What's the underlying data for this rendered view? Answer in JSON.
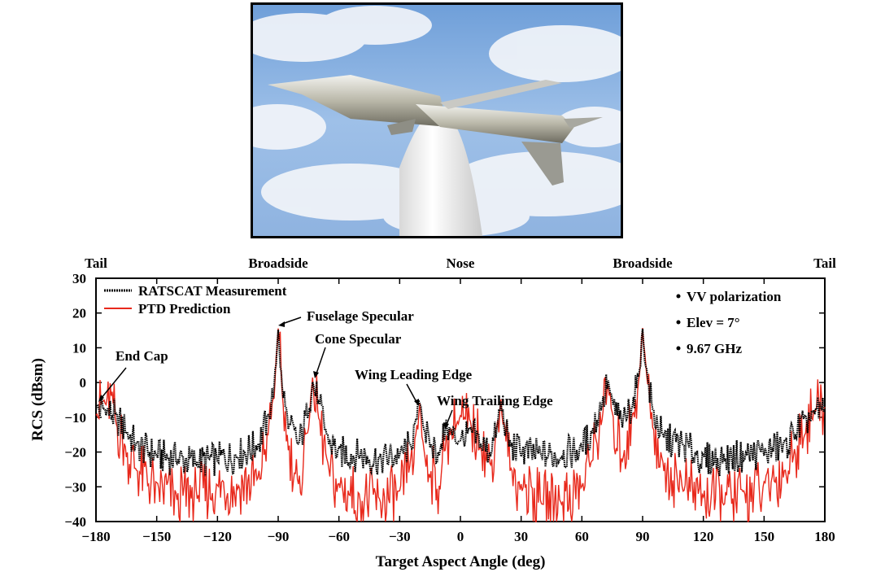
{
  "image": {
    "description_icon": "missile-model-on-pylon-photo"
  },
  "chart_data": {
    "type": "line",
    "xlabel": "Target Aspect Angle (deg)",
    "ylabel": "RCS (dBsm)",
    "xlim": [
      -180,
      180
    ],
    "ylim": [
      -40,
      30
    ],
    "xticks": [
      -180,
      -150,
      -120,
      -90,
      -60,
      -30,
      0,
      30,
      60,
      90,
      120,
      150,
      180
    ],
    "yticks": [
      -40,
      -30,
      -20,
      -10,
      0,
      10,
      20,
      30
    ],
    "grid": false,
    "top_labels": [
      {
        "x": -180,
        "text": "Tail"
      },
      {
        "x": -90,
        "text": "Broadside"
      },
      {
        "x": 0,
        "text": "Nose"
      },
      {
        "x": 90,
        "text": "Broadside"
      },
      {
        "x": 180,
        "text": "Tail"
      }
    ],
    "legend_position": "top-left",
    "series": [
      {
        "name": "RATSCAT Measurement",
        "color": "#000000",
        "style": "dotted-dense",
        "x": [
          -180,
          -175,
          -170,
          -165,
          -160,
          -150,
          -140,
          -130,
          -120,
          -110,
          -100,
          -95,
          -92,
          -90,
          -88,
          -85,
          -80,
          -75,
          -73,
          -70,
          -65,
          -60,
          -50,
          -40,
          -30,
          -25,
          -22,
          -20,
          -18,
          -15,
          -10,
          -7,
          -5,
          -2,
          0,
          2,
          5,
          10,
          15,
          18,
          20,
          22,
          25,
          30,
          40,
          50,
          60,
          65,
          70,
          73,
          75,
          80,
          85,
          88,
          90,
          92,
          95,
          100,
          110,
          120,
          130,
          140,
          150,
          160,
          165,
          170,
          175,
          180
        ],
        "values": [
          -7,
          -8,
          -10,
          -14,
          -18,
          -21,
          -22,
          -23,
          -22,
          -21,
          -18,
          -10,
          -2,
          16,
          -2,
          -12,
          -18,
          -8,
          0,
          -6,
          -17,
          -20,
          -21,
          -22,
          -21,
          -18,
          -12,
          -5,
          -13,
          -18,
          -20,
          -12,
          -14,
          -17,
          -16,
          -17,
          -14,
          -18,
          -20,
          -14,
          -6,
          -14,
          -18,
          -20,
          -21,
          -21,
          -19,
          -14,
          -6,
          0,
          -6,
          -12,
          -6,
          2,
          15,
          3,
          -8,
          -16,
          -18,
          -22,
          -22,
          -21,
          -20,
          -18,
          -15,
          -11,
          -9,
          -7
        ]
      },
      {
        "name": "PTD Prediction",
        "color": "#e8291c",
        "style": "solid",
        "x": [
          -180,
          -175,
          -172,
          -170,
          -165,
          -160,
          -150,
          -140,
          -130,
          -120,
          -110,
          -100,
          -95,
          -92,
          -90,
          -88,
          -85,
          -80,
          -75,
          -73,
          -70,
          -65,
          -60,
          -50,
          -40,
          -30,
          -25,
          -22,
          -20,
          -18,
          -15,
          -10,
          -7,
          -5,
          -2,
          0,
          2,
          5,
          10,
          15,
          18,
          20,
          22,
          25,
          30,
          40,
          50,
          60,
          65,
          70,
          73,
          75,
          80,
          85,
          88,
          90,
          92,
          95,
          100,
          110,
          120,
          130,
          140,
          150,
          160,
          165,
          170,
          175,
          180
        ],
        "values": [
          -8,
          -6,
          -4,
          -12,
          -20,
          -25,
          -30,
          -33,
          -32,
          -30,
          -30,
          -28,
          -14,
          -4,
          16,
          -4,
          -18,
          -30,
          -12,
          0,
          -10,
          -26,
          -30,
          -33,
          -34,
          -32,
          -24,
          -16,
          -6,
          -20,
          -26,
          -30,
          -16,
          -14,
          -12,
          -10,
          -11,
          -12,
          -18,
          -24,
          -12,
          -6,
          -14,
          -26,
          -30,
          -34,
          -34,
          -30,
          -22,
          -10,
          -1,
          -10,
          -22,
          -10,
          0,
          15,
          2,
          -12,
          -24,
          -30,
          -32,
          -34,
          -32,
          -30,
          -26,
          -20,
          -14,
          -8,
          -7
        ]
      }
    ],
    "annotations": [
      {
        "text": "End Cap",
        "x": -180,
        "y": -7
      },
      {
        "text": "Fuselage Specular",
        "x": -90,
        "y": 16
      },
      {
        "text": "Cone Specular",
        "x": -73,
        "y": 0
      },
      {
        "text": "Wing Leading Edge",
        "x": -20,
        "y": -5
      },
      {
        "text": "Wing Trailing Edge",
        "x": -7,
        "y": -12
      }
    ],
    "info_bullets": [
      "VV polarization",
      "Elev = 7°",
      "9.67 GHz"
    ]
  }
}
